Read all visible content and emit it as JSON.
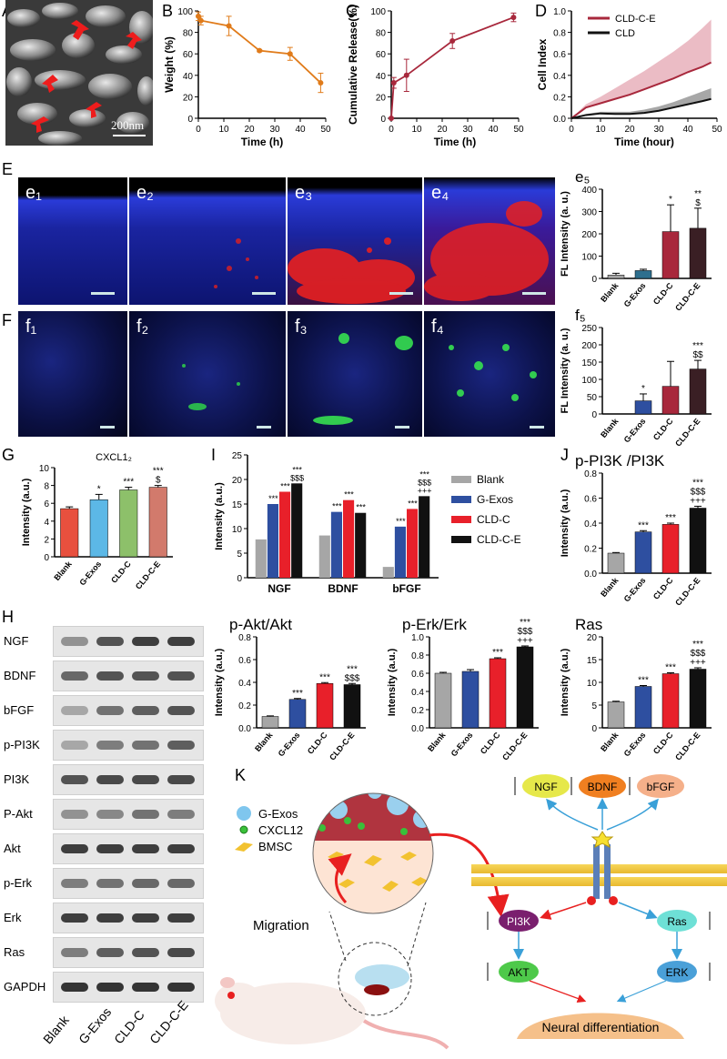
{
  "panel_labels": {
    "A": "A",
    "B": "B",
    "C": "C",
    "D": "D",
    "E": "E",
    "F": "F",
    "G": "G",
    "H": "H",
    "I": "I",
    "J": "J",
    "K": "K"
  },
  "sem": {
    "scale_text": "200nm"
  },
  "micro_labels": {
    "e": [
      "e1",
      "e2",
      "e3",
      "e4"
    ],
    "f": [
      "f1",
      "f2",
      "f3",
      "f4"
    ]
  },
  "chart_data": [
    {
      "id": "B",
      "type": "line",
      "xlabel": "Time (h)",
      "ylabel": "Weight (%)",
      "xlim": [
        0,
        50
      ],
      "ylim": [
        0,
        100
      ],
      "xticks": [
        0,
        10,
        20,
        30,
        40,
        50
      ],
      "yticks": [
        0,
        20,
        40,
        60,
        80,
        100
      ],
      "color": "#e07b1a",
      "x": [
        0,
        1,
        12,
        24,
        36,
        48
      ],
      "y": [
        95,
        91,
        86,
        63,
        60,
        33
      ],
      "err": [
        4,
        4,
        9,
        1,
        6,
        9
      ]
    },
    {
      "id": "C",
      "type": "line",
      "xlabel": "Time (h)",
      "ylabel": "Cumulative Release(%)",
      "xlim": [
        0,
        50
      ],
      "ylim": [
        0,
        100
      ],
      "xticks": [
        0,
        10,
        20,
        30,
        40,
        50
      ],
      "yticks": [
        0,
        20,
        40,
        60,
        80,
        100
      ],
      "color": "#a8283c",
      "x": [
        0,
        1,
        6,
        24,
        48
      ],
      "y": [
        0,
        33,
        40,
        72,
        94
      ],
      "err": [
        0,
        5,
        15,
        7,
        4
      ]
    },
    {
      "id": "D",
      "type": "area",
      "xlabel": "Time (hour)",
      "ylabel": "Cell Index",
      "xlim": [
        0,
        50
      ],
      "ylim": [
        0,
        1.0
      ],
      "xticks": [
        0,
        10,
        20,
        30,
        40,
        50
      ],
      "yticks": [
        0.0,
        0.2,
        0.4,
        0.6,
        0.8,
        1.0
      ],
      "series": [
        {
          "name": "CLD-C-E",
          "color": "#a8283c",
          "band": "#e4a6b1",
          "x": [
            0,
            5,
            10,
            15,
            20,
            25,
            30,
            35,
            40,
            45,
            48
          ],
          "y": [
            0,
            0.1,
            0.14,
            0.18,
            0.22,
            0.27,
            0.32,
            0.37,
            0.43,
            0.48,
            0.52
          ],
          "upper": [
            0,
            0.13,
            0.2,
            0.28,
            0.36,
            0.44,
            0.53,
            0.62,
            0.72,
            0.84,
            0.92
          ]
        },
        {
          "name": "CLD",
          "color": "#111111",
          "band": "#8a8a8a",
          "x": [
            0,
            5,
            10,
            15,
            20,
            25,
            30,
            35,
            40,
            45,
            48
          ],
          "y": [
            0,
            0.03,
            0.045,
            0.04,
            0.04,
            0.05,
            0.07,
            0.1,
            0.13,
            0.16,
            0.18
          ],
          "upper": [
            0,
            0.04,
            0.06,
            0.06,
            0.06,
            0.08,
            0.11,
            0.15,
            0.2,
            0.25,
            0.28
          ]
        }
      ]
    },
    {
      "id": "e5",
      "type": "bar",
      "title": "e5",
      "ylabel": "FL Intensity (a. u.)",
      "ylim": [
        0,
        400
      ],
      "yticks": [
        0,
        100,
        200,
        300,
        400
      ],
      "categories": [
        "Blank",
        "G-Exos",
        "CLD-C",
        "CLD-C-E"
      ],
      "values": [
        15,
        35,
        210,
        225
      ],
      "err": [
        8,
        6,
        120,
        90
      ],
      "colors": [
        "#a6a6a6",
        "#2e6f8e",
        "#a8283c",
        "#3a1f24"
      ],
      "annotations": [
        "",
        "",
        "*",
        "**\n$"
      ]
    },
    {
      "id": "f5",
      "type": "bar",
      "title": "f5",
      "ylabel": "FL Intensity (a. u.)",
      "ylim": [
        0,
        250
      ],
      "yticks": [
        0,
        50,
        100,
        150,
        200,
        250
      ],
      "categories": [
        "Blank",
        "G-Exos",
        "CLD-C",
        "CLD-C-E"
      ],
      "values": [
        0,
        38,
        80,
        130
      ],
      "err": [
        0,
        20,
        72,
        25
      ],
      "colors": [
        "#a6a6a6",
        "#2e4fa0",
        "#a8283c",
        "#3a1f24"
      ],
      "annotations": [
        "",
        "*",
        "",
        "***\n$$"
      ]
    },
    {
      "id": "G",
      "type": "bar",
      "title": "CXCL12",
      "ylabel": "Intensity (a.u.)",
      "ylim": [
        0,
        10
      ],
      "yticks": [
        0,
        2,
        4,
        6,
        8,
        10
      ],
      "categories": [
        "Blank",
        "G-Exos",
        "CLD-C",
        "CLD-C-E"
      ],
      "values": [
        5.4,
        6.4,
        7.5,
        7.8
      ],
      "err": [
        0.2,
        0.6,
        0.3,
        0.2
      ],
      "colors": [
        "#e8503e",
        "#5cb8e6",
        "#8dc06a",
        "#d27a6c"
      ],
      "annotations": [
        "",
        "*",
        "***",
        "***\n$"
      ]
    },
    {
      "id": "I",
      "type": "bar",
      "ylabel": "Intensity (a.u.)",
      "ylim": [
        0,
        25
      ],
      "yticks": [
        0,
        5,
        10,
        15,
        20,
        25
      ],
      "categories": [
        "NGF",
        "BDNF",
        "bFGF"
      ],
      "series": [
        {
          "name": "Blank",
          "color": "#a6a6a6",
          "values": [
            7.8,
            8.6,
            2.2
          ]
        },
        {
          "name": "G-Exos",
          "color": "#2e4fa0",
          "values": [
            15.0,
            13.4,
            10.4
          ]
        },
        {
          "name": "CLD-C",
          "color": "#e8202a",
          "values": [
            17.5,
            15.8,
            14.0
          ]
        },
        {
          "name": "CLD-C-E",
          "color": "#111111",
          "values": [
            19.2,
            13.2,
            16.6
          ]
        }
      ],
      "annotations": [
        [
          "",
          "***",
          "***",
          "***\n$$$"
        ],
        [
          "",
          "***",
          "***",
          "***"
        ],
        [
          "",
          "***",
          "***",
          "***\n$$$\n+++"
        ]
      ]
    },
    {
      "id": "j1",
      "type": "bar",
      "title": "p-PI3K /PI3K",
      "ylabel": "Intensity (a.u.)",
      "ylim": [
        0,
        0.8
      ],
      "yticks": [
        0.0,
        0.2,
        0.4,
        0.6,
        0.8
      ],
      "categories": [
        "Blank",
        "G-Exos",
        "CLD-C",
        "CLD-C-E"
      ],
      "values": [
        0.16,
        0.33,
        0.39,
        0.52
      ],
      "err": [
        0.005,
        0.01,
        0.01,
        0.015
      ],
      "colors": [
        "#a6a6a6",
        "#2e4fa0",
        "#e8202a",
        "#111111"
      ],
      "annotations": [
        "",
        "***",
        "***",
        "***\n$$$\n+++"
      ]
    },
    {
      "id": "j2",
      "type": "bar",
      "title": "p-Akt/Akt",
      "ylabel": "Intensity (a.u.)",
      "ylim": [
        0,
        0.8
      ],
      "yticks": [
        0.0,
        0.2,
        0.4,
        0.6,
        0.8
      ],
      "categories": [
        "Blank",
        "G-Exos",
        "CLD-C",
        "CLD-C-E"
      ],
      "values": [
        0.1,
        0.25,
        0.39,
        0.38
      ],
      "err": [
        0.005,
        0.008,
        0.008,
        0.01
      ],
      "colors": [
        "#a6a6a6",
        "#2e4fa0",
        "#e8202a",
        "#111111"
      ],
      "annotations": [
        "",
        "***",
        "***",
        "***\n$$$"
      ]
    },
    {
      "id": "j3",
      "type": "bar",
      "title": "p-Erk/Erk",
      "ylabel": "Intensity (a.u.)",
      "ylim": [
        0,
        1.0
      ],
      "yticks": [
        0.0,
        0.2,
        0.4,
        0.6,
        0.8,
        1.0
      ],
      "categories": [
        "Blank",
        "G-Exos",
        "CLD-C",
        "CLD-C-E"
      ],
      "values": [
        0.6,
        0.62,
        0.76,
        0.89
      ],
      "err": [
        0.01,
        0.02,
        0.01,
        0.01
      ],
      "colors": [
        "#a6a6a6",
        "#2e4fa0",
        "#e8202a",
        "#111111"
      ],
      "annotations": [
        "",
        "",
        "***",
        "***\n$$$\n+++"
      ]
    },
    {
      "id": "j4",
      "type": "bar",
      "title": "Ras",
      "ylabel": "Intensity (a.u.)",
      "ylim": [
        0,
        20
      ],
      "yticks": [
        0,
        5,
        10,
        15,
        20
      ],
      "categories": [
        "Blank",
        "G-Exos",
        "CLD-C",
        "CLD-C-E"
      ],
      "values": [
        5.7,
        9.1,
        11.9,
        12.9
      ],
      "err": [
        0.15,
        0.2,
        0.2,
        0.3
      ],
      "colors": [
        "#a6a6a6",
        "#2e4fa0",
        "#e8202a",
        "#111111"
      ],
      "annotations": [
        "",
        "***",
        "***",
        "***\n$$$\n+++"
      ]
    }
  ],
  "western_blot": {
    "rows": [
      "NGF",
      "BDNF",
      "bFGF",
      "p-PI3K",
      "PI3K",
      "P-Akt",
      "Akt",
      "p-Erk",
      "Erk",
      "Ras",
      "GAPDH"
    ],
    "lanes": [
      "Blank",
      "G-Exos",
      "CLD-C",
      "CLD-C-E"
    ],
    "intensity": [
      [
        0.4,
        0.7,
        0.8,
        0.8
      ],
      [
        0.6,
        0.7,
        0.7,
        0.7
      ],
      [
        0.3,
        0.55,
        0.65,
        0.7
      ],
      [
        0.3,
        0.5,
        0.55,
        0.65
      ],
      [
        0.7,
        0.75,
        0.75,
        0.75
      ],
      [
        0.4,
        0.45,
        0.55,
        0.5
      ],
      [
        0.8,
        0.8,
        0.8,
        0.8
      ],
      [
        0.5,
        0.55,
        0.6,
        0.6
      ],
      [
        0.8,
        0.8,
        0.8,
        0.8
      ],
      [
        0.5,
        0.65,
        0.7,
        0.75
      ],
      [
        0.85,
        0.85,
        0.85,
        0.85
      ]
    ]
  },
  "schematic": {
    "legend": [
      "G-Exos",
      "CXCL12",
      "BMSC"
    ],
    "migration": "Migration",
    "factors": [
      "NGF",
      "BDNF",
      "bFGF"
    ],
    "nodes": {
      "pi3k": "PI3K",
      "ras": "Ras",
      "akt": "AKT",
      "erk": "ERK"
    },
    "outcome": "Neural differentiation",
    "colors": {
      "ngf": "#e6e84a",
      "bdnf": "#f07f20",
      "bfgf": "#f5b08a",
      "pi3k": "#7a1f6e",
      "ras": "#6ee0d6",
      "akt": "#4ec94a",
      "erk": "#4aa0d8",
      "outcome": "#f5c08a",
      "membrane": "#f3c94a"
    }
  }
}
